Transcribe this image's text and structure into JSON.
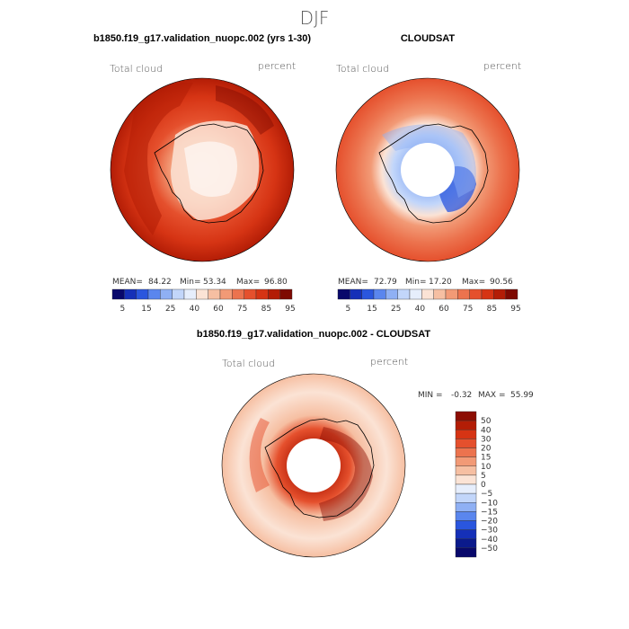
{
  "season_title": "DJF",
  "panels": [
    {
      "id": "model",
      "title": "b1850.f19_g17.validation_nuopc.002 (yrs 1-30)",
      "variable_label": "Total cloud",
      "units_label": "percent",
      "stats": {
        "mean_label": "MEAN=",
        "mean": "84.22",
        "min_label": "Min=",
        "min": "53.34",
        "max_label": "Max=",
        "max": "96.80"
      }
    },
    {
      "id": "obs",
      "title": "CLOUDSAT",
      "variable_label": "Total cloud",
      "units_label": "percent",
      "stats": {
        "mean_label": "MEAN=",
        "mean": "72.79",
        "min_label": "Min=",
        "min": "17.20",
        "max_label": "Max=",
        "max": "90.56"
      }
    },
    {
      "id": "diff",
      "title": "b1850.f19_g17.validation_nuopc.002 - CLOUDSAT",
      "variable_label": "Total cloud",
      "units_label": "percent",
      "stats": {
        "min_label": "MIN =",
        "min": "-0.32",
        "max_label": "MAX =",
        "max": "55.99"
      }
    }
  ],
  "chart_data": [
    {
      "type": "heatmap",
      "projection": "south-polar-stereographic",
      "title": "b1850.f19_g17.validation_nuopc.002 (yrs 1-30)",
      "variable": "Total cloud",
      "units": "percent",
      "mean": 84.22,
      "min": 53.34,
      "max": 96.8,
      "colorbar": {
        "tick_labels": [
          "5",
          "15",
          "25",
          "40",
          "60",
          "75",
          "85",
          "95"
        ],
        "colors": [
          "#08086b",
          "#1530b8",
          "#2a56de",
          "#5a86ee",
          "#8fb0f4",
          "#c2d6fa",
          "#e6eefc",
          "#fbe3d5",
          "#f6bfa2",
          "#f29a76",
          "#ec734e",
          "#e5502d",
          "#d63414",
          "#b31d06",
          "#7e0a02"
        ]
      }
    },
    {
      "type": "heatmap",
      "projection": "south-polar-stereographic",
      "title": "CLOUDSAT",
      "variable": "Total cloud",
      "units": "percent",
      "mean": 72.79,
      "min": 17.2,
      "max": 90.56,
      "colorbar": {
        "tick_labels": [
          "5",
          "15",
          "25",
          "40",
          "60",
          "75",
          "85",
          "95"
        ],
        "colors": [
          "#08086b",
          "#1530b8",
          "#2a56de",
          "#5a86ee",
          "#8fb0f4",
          "#c2d6fa",
          "#e6eefc",
          "#fbe3d5",
          "#f6bfa2",
          "#f29a76",
          "#ec734e",
          "#e5502d",
          "#d63414",
          "#b31d06",
          "#7e0a02"
        ]
      }
    },
    {
      "type": "heatmap",
      "projection": "south-polar-stereographic",
      "title": "b1850.f19_g17.validation_nuopc.002 - CLOUDSAT",
      "variable": "Total cloud",
      "units": "percent",
      "min": -0.32,
      "max": 55.99,
      "colorbar": {
        "orientation": "vertical",
        "tick_labels": [
          "50",
          "40",
          "30",
          "20",
          "15",
          "10",
          "5",
          "0",
          "−5",
          "−10",
          "−15",
          "−20",
          "−30",
          "−40",
          "−50"
        ],
        "colors": [
          "#8c0d03",
          "#b31d06",
          "#d63414",
          "#e5502d",
          "#ec734e",
          "#f29a76",
          "#f6bfa2",
          "#fbe3d5",
          "#e6eefc",
          "#c2d6fa",
          "#8fb0f4",
          "#5a86ee",
          "#2a56de",
          "#1530b8",
          "#0b1a8c",
          "#08086b"
        ]
      }
    }
  ]
}
